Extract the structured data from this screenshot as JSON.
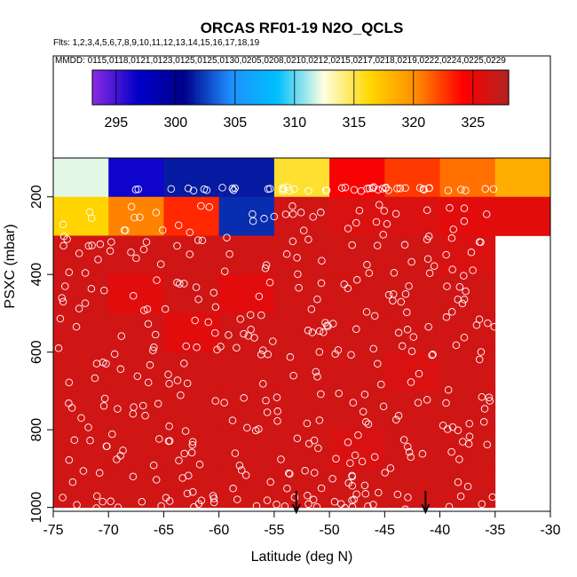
{
  "chart_data": {
    "type": "heatmap",
    "title": "ORCAS RF01-19 N2O_QCLS",
    "flights_label": "Flts: 1,2,3,4,5,6,7,8,9,10,11,12,13,14,15,16,17,18,19",
    "dates_label": "MMDD: 0115,0118,0121,0123,0125,0125,0130,0205,0208,0210,0212,0215,0217,0218,0219,0222,0224,0225,0229",
    "xlabel": "Latitude (deg N)",
    "ylabel": "PSXC (mbar)",
    "xlim": [
      -75,
      -30
    ],
    "ylim": [
      1010,
      100
    ],
    "x_ticks": [
      -75,
      -70,
      -65,
      -60,
      -55,
      -50,
      -45,
      -40,
      -35,
      -30
    ],
    "y_ticks": [
      200,
      400,
      600,
      800,
      1000
    ],
    "colorbar": {
      "range": [
        293,
        328
      ],
      "ticks": [
        295,
        300,
        305,
        310,
        315,
        320,
        325
      ],
      "colors": [
        "#8a2be2",
        "#0000c8",
        "#00008b",
        "#1e90ff",
        "#00bfff",
        "#ffffe0",
        "#ffd700",
        "#ff8c00",
        "#ff0000",
        "#b22222"
      ]
    },
    "lat_bins": [
      -75,
      -70,
      -65,
      -60,
      -55,
      -50,
      -45,
      -40,
      -35
    ],
    "pressure_bins": [
      100,
      200,
      300,
      400,
      500,
      600,
      700,
      800,
      900,
      1000
    ],
    "cells": [
      [
        312.0,
        296.5,
        301.5,
        301.5,
        315.5,
        324.5,
        322.5,
        321.0,
        318.5
      ],
      [
        316.5,
        320.5,
        323.0,
        302.0,
        326.5,
        326.0,
        326.0,
        325.5,
        325.5
      ],
      [
        326.5,
        326.5,
        326.5,
        326.5,
        326.5,
        326.5,
        326.5,
        326.0,
        null
      ],
      [
        326.5,
        325.5,
        326.5,
        325.5,
        326.5,
        326.5,
        326.5,
        326.5,
        null
      ],
      [
        326.5,
        326.5,
        325.5,
        326.5,
        326.5,
        326.5,
        326.5,
        326.5,
        null
      ],
      [
        326.5,
        326.5,
        326.5,
        326.5,
        326.5,
        326.5,
        326.0,
        326.5,
        null
      ],
      [
        326.5,
        326.5,
        326.5,
        326.5,
        326.5,
        326.5,
        326.5,
        326.5,
        null
      ],
      [
        326.5,
        326.5,
        326.5,
        326.5,
        326.5,
        326.0,
        326.5,
        326.5,
        null
      ],
      [
        326.5,
        326.5,
        326.5,
        326.5,
        326.5,
        326.5,
        326.5,
        326.5,
        null
      ]
    ],
    "arrows_at_latitude": [
      -53,
      -41.3
    ]
  }
}
